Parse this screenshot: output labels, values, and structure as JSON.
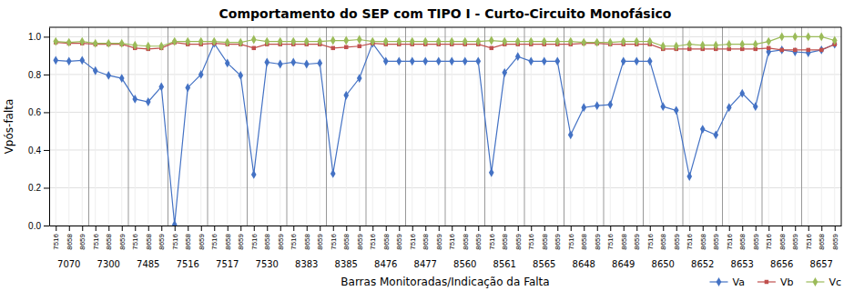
{
  "chart_data": {
    "type": "line",
    "title": "Comportamento do SEP com TIPO I - Curto-Circuito Monofásico",
    "x_label": "Barras Monitoradas/Indicação da Falta",
    "y_label": "Vpós-falta",
    "categories": [
      "7516",
      "8658",
      "8659",
      "7516",
      "8658",
      "8659",
      "7516",
      "8658",
      "8659",
      "7516",
      "8658",
      "8659",
      "7516",
      "8658",
      "8659",
      "7516",
      "8658",
      "8659",
      "7516",
      "8658",
      "8659",
      "7516",
      "8658",
      "8659",
      "7516",
      "8658",
      "8659",
      "7516",
      "8658",
      "8659",
      "7516",
      "8658",
      "8659",
      "7516",
      "8658",
      "8659",
      "7516",
      "8658",
      "8659",
      "7516",
      "8658",
      "8659",
      "7516",
      "8658",
      "8659",
      "7516",
      "8658",
      "8659",
      "7516",
      "8658",
      "8659",
      "7516",
      "8658",
      "8659",
      "7516",
      "8658",
      "8659",
      "7516",
      "8658",
      "8659"
    ],
    "groups": [
      "7070",
      "7300",
      "7485",
      "7516",
      "7517",
      "7530",
      "8383",
      "8385",
      "8476",
      "8477",
      "8560",
      "8561",
      "8565",
      "8648",
      "8649",
      "8650",
      "8652",
      "8653",
      "8656",
      "8657"
    ],
    "series": [
      {
        "name": "Va",
        "color": "#4472C4",
        "marker": "diamond",
        "values": [
          0.875,
          0.87,
          0.875,
          0.82,
          0.795,
          0.78,
          0.67,
          0.655,
          0.735,
          0.005,
          0.73,
          0.8,
          0.965,
          0.86,
          0.795,
          0.27,
          0.865,
          0.855,
          0.865,
          0.855,
          0.86,
          0.275,
          0.69,
          0.78,
          0.965,
          0.87,
          0.87,
          0.87,
          0.87,
          0.87,
          0.87,
          0.87,
          0.87,
          0.28,
          0.81,
          0.895,
          0.87,
          0.87,
          0.87,
          0.48,
          0.625,
          0.635,
          0.64,
          0.87,
          0.87,
          0.87,
          0.63,
          0.61,
          0.26,
          0.51,
          0.48,
          0.625,
          0.7,
          0.63,
          0.92,
          0.93,
          0.92,
          0.915,
          0.93,
          0.96
        ]
      },
      {
        "name": "Vb",
        "color": "#C0504D",
        "marker": "square",
        "values": [
          0.97,
          0.965,
          0.965,
          0.96,
          0.96,
          0.96,
          0.94,
          0.935,
          0.94,
          0.97,
          0.96,
          0.96,
          0.965,
          0.96,
          0.96,
          0.94,
          0.96,
          0.96,
          0.96,
          0.96,
          0.96,
          0.94,
          0.945,
          0.95,
          0.965,
          0.96,
          0.96,
          0.96,
          0.96,
          0.96,
          0.96,
          0.96,
          0.96,
          0.94,
          0.96,
          0.96,
          0.96,
          0.96,
          0.96,
          0.96,
          0.965,
          0.965,
          0.96,
          0.96,
          0.96,
          0.96,
          0.935,
          0.935,
          0.935,
          0.935,
          0.935,
          0.935,
          0.935,
          0.935,
          0.94,
          0.93,
          0.93,
          0.93,
          0.93,
          0.96
        ]
      },
      {
        "name": "Vc",
        "color": "#9BBB59",
        "marker": "diamond",
        "values": [
          0.975,
          0.97,
          0.975,
          0.965,
          0.965,
          0.965,
          0.955,
          0.95,
          0.95,
          0.975,
          0.975,
          0.975,
          0.975,
          0.97,
          0.97,
          0.985,
          0.975,
          0.975,
          0.975,
          0.975,
          0.975,
          0.98,
          0.98,
          0.985,
          0.975,
          0.975,
          0.975,
          0.975,
          0.975,
          0.975,
          0.975,
          0.975,
          0.975,
          0.98,
          0.975,
          0.975,
          0.975,
          0.975,
          0.975,
          0.975,
          0.97,
          0.97,
          0.97,
          0.975,
          0.975,
          0.975,
          0.95,
          0.95,
          0.96,
          0.955,
          0.955,
          0.96,
          0.96,
          0.96,
          0.975,
          1.0,
          1.0,
          1.0,
          1.0,
          0.98
        ]
      }
    ],
    "ylim": [
      0,
      1.05
    ],
    "yticks": [
      {
        "value": 0,
        "label": "0.0"
      },
      0.2,
      0.4,
      0.6,
      0.8,
      {
        "value": 1,
        "label": "1.0"
      }
    ],
    "grid": true,
    "legend": "bottom-right"
  }
}
